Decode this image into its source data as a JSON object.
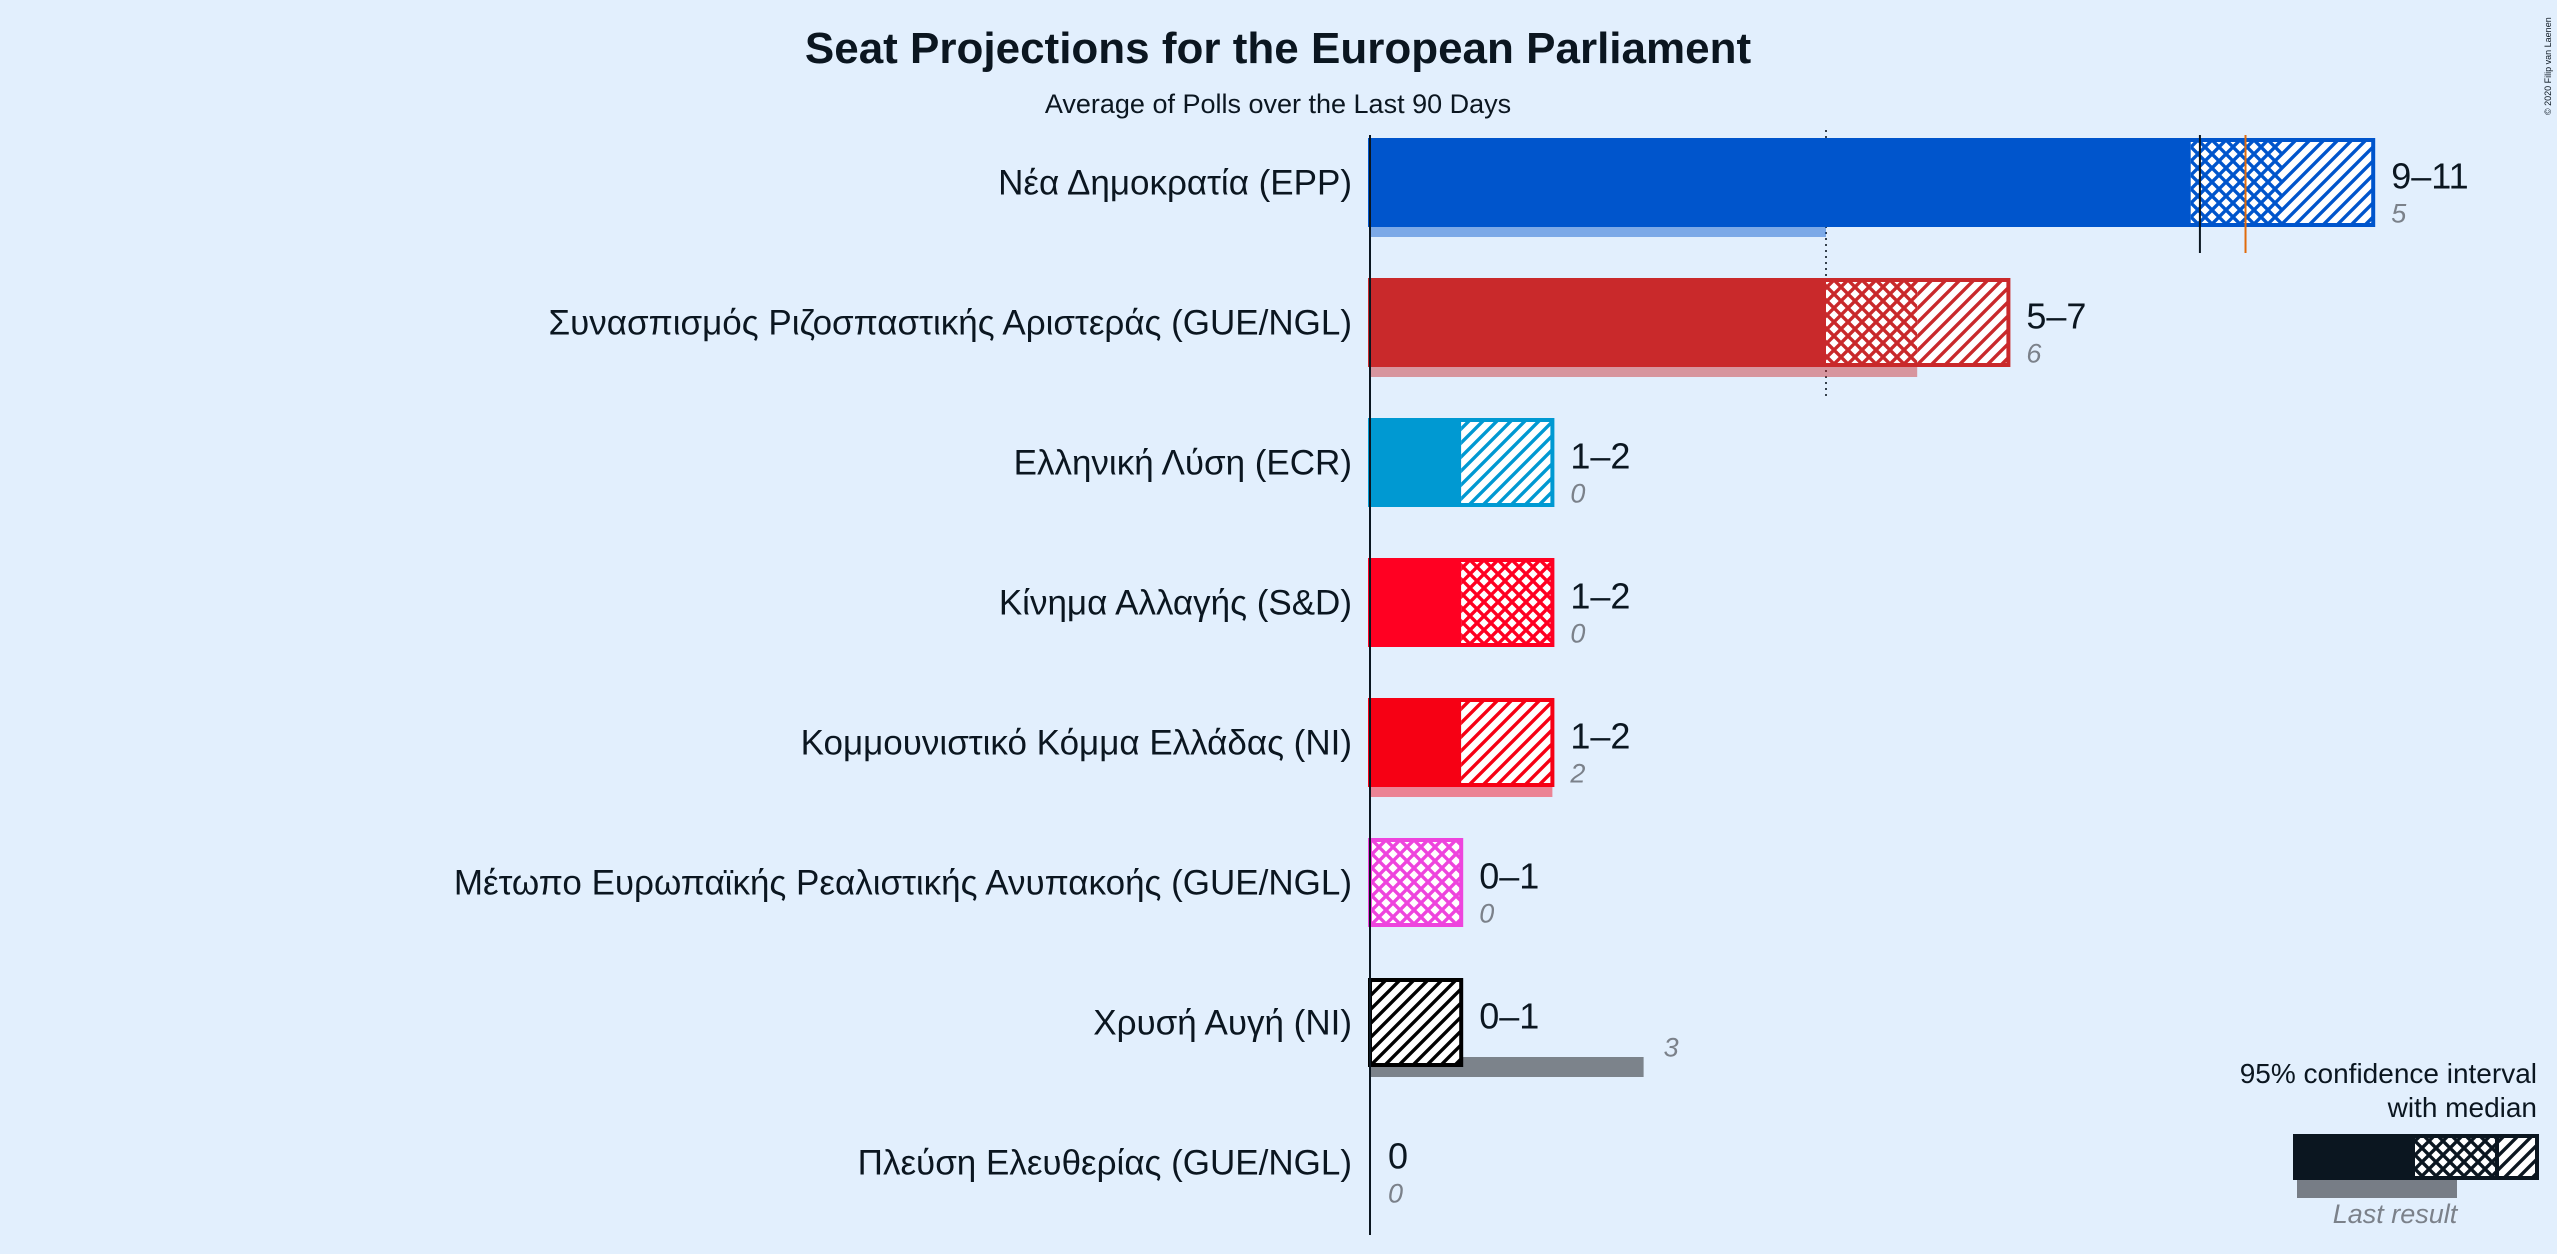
{
  "chart_data": {
    "type": "bar",
    "title": "Seat Projections for the European Parliament",
    "subtitle": "Average of Polls over the Last 90 Days",
    "copyright": "© 2020 Filip van Laenen",
    "majority_marker": 9.5,
    "parties": [
      {
        "name": "Νέα Δημοκρατία (EPP)",
        "color": "#0055cc",
        "ci_low": 9,
        "median_low": 10,
        "ci_high": 11,
        "median": 10,
        "range_label": "9–11",
        "last": 5,
        "last_label": "5",
        "pattern_mid": "cross",
        "pattern_high": "diag"
      },
      {
        "name": "Συνασπισμός Ριζοσπαστικής Αριστεράς (GUE/NGL)",
        "color": "#c9292b",
        "ci_low": 5,
        "median_low": 6,
        "ci_high": 7,
        "median": 6,
        "range_label": "5–7",
        "last": 6,
        "last_label": "6",
        "pattern_mid": "cross",
        "pattern_high": "diag"
      },
      {
        "name": "Ελληνική Λύση (ECR)",
        "color": "#0099d2",
        "ci_low": 1,
        "median_low": 1,
        "ci_high": 2,
        "median": 1,
        "range_label": "1–2",
        "last": 0,
        "last_label": "0",
        "pattern_mid": "diag",
        "pattern_high": "diag"
      },
      {
        "name": "Κίνημα Αλλαγής (S&D)",
        "color": "#ff0022",
        "ci_low": 1,
        "median_low": 2,
        "ci_high": 2,
        "median": 2,
        "range_label": "1–2",
        "last": 0,
        "last_label": "0",
        "pattern_mid": "cross",
        "pattern_high": "cross"
      },
      {
        "name": "Κομμουνιστικό Κόμμα Ελλάδας (NI)",
        "color": "#f60014",
        "ci_low": 1,
        "median_low": 1,
        "ci_high": 2,
        "median": 1,
        "range_label": "1–2",
        "last": 2,
        "last_label": "2",
        "pattern_mid": "diag",
        "pattern_high": "diag"
      },
      {
        "name": "Μέτωπο Ευρωπαϊκής Ρεαλιστικής Ανυπακοής (GUE/NGL)",
        "color": "#ee44dd",
        "ci_low": 0,
        "median_low": 1,
        "ci_high": 1,
        "median": 1,
        "range_label": "0–1",
        "last": 0,
        "last_label": "0",
        "pattern_mid": "cross",
        "pattern_high": "cross"
      },
      {
        "name": "Χρυσή Αυγή (NI)",
        "color": "#000000",
        "ci_low": 0,
        "median_low": 0,
        "ci_high": 1,
        "median": 0,
        "range_label": "0–1",
        "last": 3,
        "last_label": "3",
        "pattern_mid": "diag",
        "pattern_high": "diag"
      },
      {
        "name": "Πλεύση Ελευθερίας (GUE/NGL)",
        "color": "#222222",
        "ci_low": 0,
        "median_low": 0,
        "ci_high": 0,
        "median": 0,
        "range_label": "0",
        "last": 0,
        "last_label": "0",
        "pattern_mid": "none",
        "pattern_high": "none"
      }
    ],
    "legend": {
      "line1": "95% confidence interval",
      "line2": "with median",
      "last_result": "Last result",
      "color": "#0b1620"
    },
    "colors": {
      "background": "#e2effd",
      "last_result_bar": "#777d86"
    }
  }
}
